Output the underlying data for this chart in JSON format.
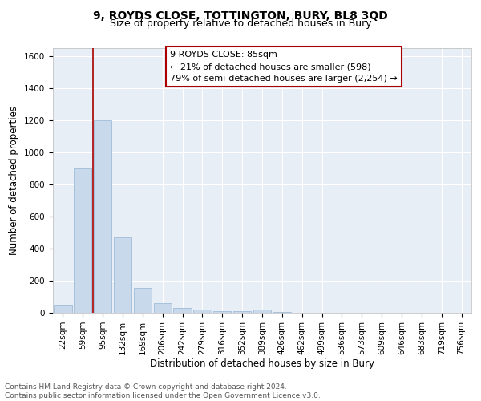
{
  "title": "9, ROYDS CLOSE, TOTTINGTON, BURY, BL8 3QD",
  "subtitle": "Size of property relative to detached houses in Bury",
  "xlabel": "Distribution of detached houses by size in Bury",
  "ylabel": "Number of detached properties",
  "footnote1": "Contains HM Land Registry data © Crown copyright and database right 2024.",
  "footnote2": "Contains public sector information licensed under the Open Government Licence v3.0.",
  "annotation_line1": "9 ROYDS CLOSE: 85sqm",
  "annotation_line2": "← 21% of detached houses are smaller (598)",
  "annotation_line3": "79% of semi-detached houses are larger (2,254) →",
  "bar_color": "#c8d9ec",
  "bar_edge_color": "#a0bcd8",
  "vline_color": "#aa0000",
  "box_edge_color": "#aa0000",
  "bg_color": "#e8eef6",
  "grid_color": "#ffffff",
  "categories": [
    "22sqm",
    "59sqm",
    "95sqm",
    "132sqm",
    "169sqm",
    "206sqm",
    "242sqm",
    "279sqm",
    "316sqm",
    "352sqm",
    "389sqm",
    "426sqm",
    "462sqm",
    "499sqm",
    "536sqm",
    "573sqm",
    "609sqm",
    "646sqm",
    "683sqm",
    "719sqm",
    "756sqm"
  ],
  "values": [
    50,
    900,
    1200,
    470,
    155,
    60,
    30,
    20,
    10,
    10,
    20,
    5,
    0,
    0,
    0,
    0,
    0,
    0,
    0,
    0,
    0
  ],
  "ylim": [
    0,
    1650
  ],
  "yticks": [
    0,
    200,
    400,
    600,
    800,
    1000,
    1200,
    1400,
    1600
  ],
  "vline_x_idx": 1.5,
  "title_fontsize": 10,
  "subtitle_fontsize": 9,
  "label_fontsize": 8.5,
  "tick_fontsize": 7.5,
  "annot_fontsize": 8,
  "footnote_fontsize": 6.5
}
